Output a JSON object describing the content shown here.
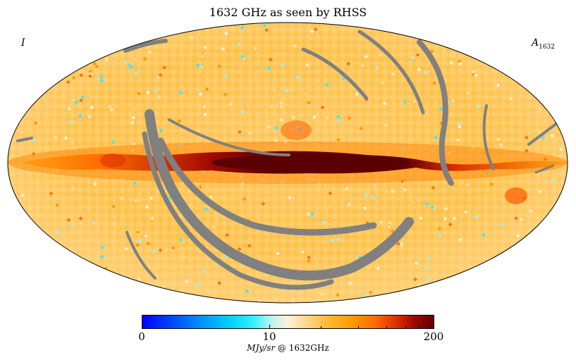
{
  "title": "1632 GHz as seen by RHSS",
  "corner_left": "I",
  "corner_right": {
    "main": "A",
    "sub": "1632"
  },
  "colorbar": {
    "min_label": "0",
    "mid_label": "10",
    "max_label": "200",
    "unit": "MJy/sr",
    "unit_suffix": "@ 1632GHz"
  },
  "colors": {
    "mask": "#808080",
    "galactic_plane": "#6a0000",
    "background_warm": "#ffb830"
  }
}
